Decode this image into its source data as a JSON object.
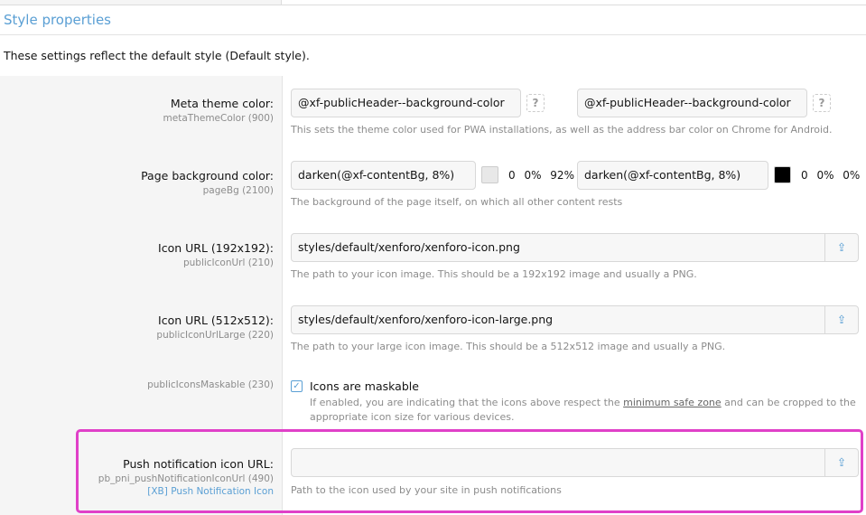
{
  "section": {
    "title": "Style properties",
    "description": "These settings reflect the default style (Default style)."
  },
  "rows": [
    {
      "label": "Meta theme color:",
      "key": "metaThemeColor (900)",
      "value1": "@xf-publicHeader--background-color",
      "value2": "@xf-publicHeader--background-color",
      "help": "?",
      "hint": "This sets the theme color used for PWA installations, as well as the address bar color on Chrome for Android."
    },
    {
      "label": "Page background color:",
      "key": "pageBg (2100)",
      "value1": "darken(@xf-contentBg, 8%)",
      "color1": "#e8e8e8",
      "hsl1": "0 0% 92%",
      "value2": "darken(@xf-contentBg, 8%)",
      "color2": "#000000",
      "hsl2": "0 0% 0%",
      "hint": "The background of the page itself, on which all other content rests"
    },
    {
      "label": "Icon URL (192x192):",
      "key": "publicIconUrl (210)",
      "value": "styles/default/xenforo/xenforo-icon.png",
      "hint": "The path to your icon image. This should be a 192x192 image and usually a PNG."
    },
    {
      "label": "Icon URL (512x512):",
      "key": "publicIconUrlLarge (220)",
      "value": "styles/default/xenforo/xenforo-icon-large.png",
      "hint": "The path to your large icon image. This should be a 512x512 image and usually a PNG."
    },
    {
      "key": "publicIconsMaskable (230)",
      "checkbox_label": "Icons are maskable",
      "checked": true,
      "hint_before": "If enabled, you are indicating that the icons above respect the ",
      "hint_link": "minimum safe zone",
      "hint_after": " and can be cropped to the",
      "hint_line2": "appropriate icon size for various devices."
    },
    {
      "label": "Push notification icon URL:",
      "key": "pb_pni_pushNotificationIconUrl (490)",
      "addon": "[XB] Push Notification Icon",
      "value": "",
      "hint": "Path to the icon used by your site in push notifications"
    }
  ],
  "colors": {
    "accent": "#5a9fd4",
    "highlight": "#e040c8"
  }
}
